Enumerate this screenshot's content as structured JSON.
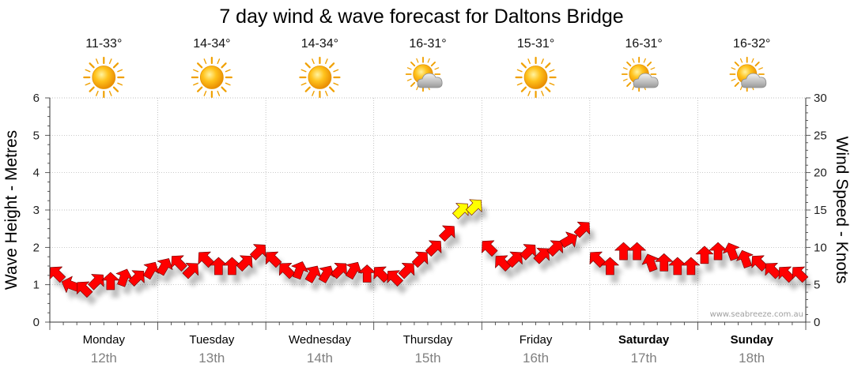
{
  "chart_data": {
    "type": "line",
    "title": "7 day wind & wave forecast for Daltons Bridge",
    "ylabel_left": "Wave Height - Metres",
    "ylabel_right": "Wind Speed - Knots",
    "ylim_left": [
      0,
      6
    ],
    "ylim_right": [
      0,
      30
    ],
    "yticks_left": [
      "0",
      "1",
      "2",
      "3",
      "4",
      "5",
      "6"
    ],
    "yticks_right": [
      "0",
      "5",
      "10",
      "15",
      "20",
      "25",
      "30"
    ],
    "grid": true,
    "watermark": "www.seabreeze.com.au",
    "days": [
      {
        "day": "Monday",
        "date": "12th",
        "temp": "11-33°",
        "weather_icon": "sun-icon",
        "weekend": false
      },
      {
        "day": "Tuesday",
        "date": "13th",
        "temp": "14-34°",
        "weather_icon": "sun-icon",
        "weekend": false
      },
      {
        "day": "Wednesday",
        "date": "14th",
        "temp": "14-34°",
        "weather_icon": "sun-icon",
        "weekend": false
      },
      {
        "day": "Thursday",
        "date": "15th",
        "temp": "16-31°",
        "weather_icon": "partly-cloudy-icon",
        "weekend": false
      },
      {
        "day": "Friday",
        "date": "16th",
        "temp": "15-31°",
        "weather_icon": "sun-icon",
        "weekend": false
      },
      {
        "day": "Saturday",
        "date": "17th",
        "temp": "16-31°",
        "weather_icon": "partly-cloudy-icon",
        "weekend": true
      },
      {
        "day": "Sunday",
        "date": "18th",
        "temp": "16-32°",
        "weather_icon": "partly-cloudy-icon",
        "weekend": true
      }
    ],
    "wind_colors": {
      "under_15": "#ff0000",
      "15_to_20": "#ffff00"
    },
    "series": [
      {
        "unit": "knots",
        "axis": "right",
        "points_per_day": 8,
        "values": [
          6.5,
          5,
          4.5,
          5.5,
          5.5,
          6,
          6,
          7,
          7.5,
          8,
          7,
          8.5,
          7.5,
          7.5,
          8,
          9.5,
          8.5,
          7,
          7,
          6.5,
          6.5,
          7,
          7,
          6.5,
          6.5,
          6,
          7,
          8.5,
          10,
          12,
          15,
          15.5,
          10,
          8,
          8.5,
          9.5,
          9,
          10,
          11,
          12.5,
          8.5,
          7.5,
          9.5,
          9.5,
          8,
          8,
          7.5,
          7.5,
          9,
          9.5,
          9.5,
          8.5,
          8,
          7,
          6.5,
          6.5
        ],
        "direction_deg": [
          135,
          160,
          135,
          45,
          90,
          70,
          45,
          60,
          60,
          135,
          45,
          135,
          90,
          90,
          45,
          45,
          135,
          135,
          70,
          60,
          60,
          45,
          60,
          90,
          135,
          135,
          45,
          45,
          45,
          45,
          45,
          45,
          135,
          135,
          45,
          45,
          45,
          45,
          30,
          45,
          135,
          90,
          90,
          90,
          110,
          90,
          90,
          90,
          90,
          90,
          110,
          110,
          135,
          135,
          135,
          135
        ]
      }
    ]
  }
}
